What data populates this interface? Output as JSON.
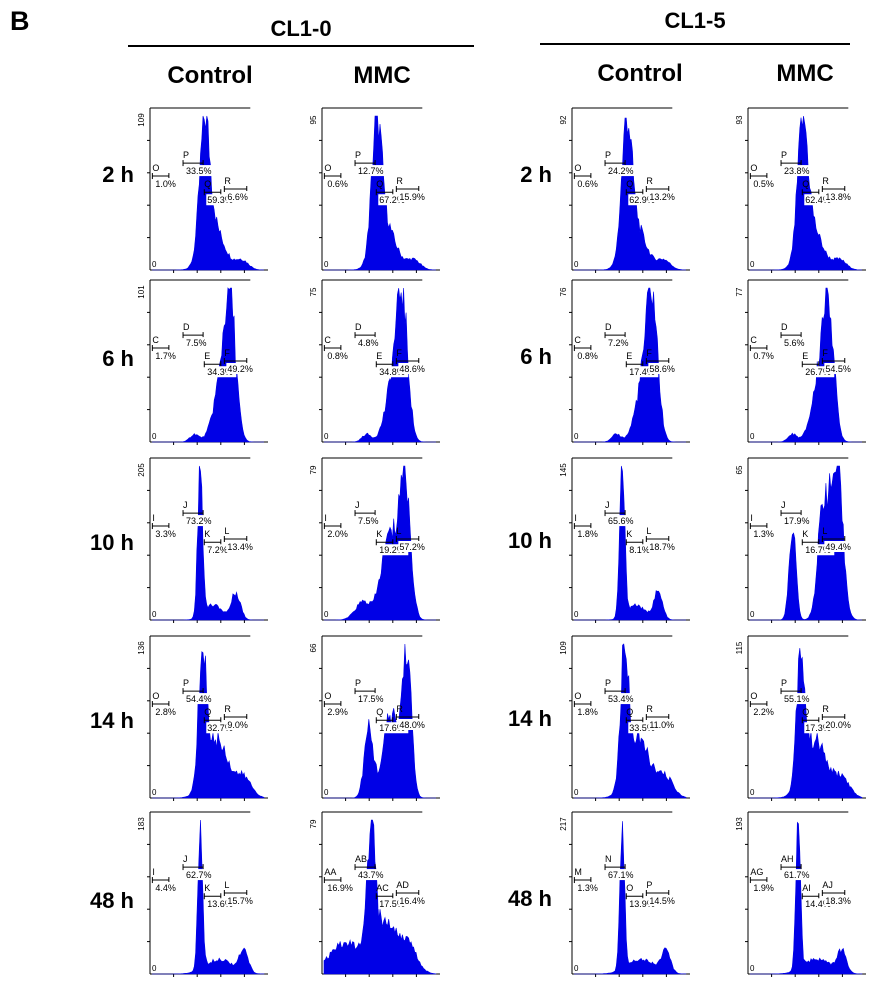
{
  "panel_letter": "B",
  "cell_lines": [
    "CL1-0",
    "CL1-5"
  ],
  "treatments": [
    "Control",
    "MMC"
  ],
  "time_labels": [
    "2 h",
    "6 h",
    "10 h",
    "14 h",
    "48 h"
  ],
  "colors": {
    "histogram": "#0000e6",
    "axis": "#000000",
    "text": "#000000"
  },
  "chart_data": [
    {
      "type": "area",
      "panel": "CL1-0 / Control / 2 h",
      "ymax_label": "109",
      "x0_label": "0",
      "profile": "g1",
      "x_range": [
        0,
        1
      ],
      "gates": [
        {
          "letter": "O",
          "pct": "1.0%"
        },
        {
          "letter": "P",
          "pct": "33.5%"
        },
        {
          "letter": "Q",
          "pct": "59.3%"
        },
        {
          "letter": "R",
          "pct": "6.6%"
        }
      ]
    },
    {
      "type": "area",
      "panel": "CL1-0 / MMC / 2 h",
      "ymax_label": "95",
      "x0_label": "0",
      "profile": "g1",
      "x_range": [
        0,
        1
      ],
      "gates": [
        {
          "letter": "O",
          "pct": "0.6%"
        },
        {
          "letter": "P",
          "pct": "12.7%"
        },
        {
          "letter": "Q",
          "pct": "67.2%"
        },
        {
          "letter": "R",
          "pct": "15.9%"
        }
      ]
    },
    {
      "type": "area",
      "panel": "CL1-5 / Control / 2 h",
      "ymax_label": "92",
      "x0_label": "0",
      "profile": "g1",
      "x_range": [
        0,
        1
      ],
      "gates": [
        {
          "letter": "O",
          "pct": "0.6%"
        },
        {
          "letter": "P",
          "pct": "24.2%"
        },
        {
          "letter": "Q",
          "pct": "62.9%"
        },
        {
          "letter": "R",
          "pct": "13.2%"
        }
      ]
    },
    {
      "type": "area",
      "panel": "CL1-5 / MMC / 2 h",
      "ymax_label": "93",
      "x0_label": "0",
      "profile": "g1",
      "x_range": [
        0,
        1
      ],
      "gates": [
        {
          "letter": "O",
          "pct": "0.5%"
        },
        {
          "letter": "P",
          "pct": "23.8%"
        },
        {
          "letter": "Q",
          "pct": "62.4%"
        },
        {
          "letter": "R",
          "pct": "13.8%"
        }
      ]
    },
    {
      "type": "area",
      "panel": "CL1-0 / Control / 6 h",
      "ymax_label": "101",
      "x0_label": "0",
      "profile": "late",
      "x_range": [
        0,
        1
      ],
      "gates": [
        {
          "letter": "C",
          "pct": "1.7%"
        },
        {
          "letter": "D",
          "pct": "7.5%"
        },
        {
          "letter": "E",
          "pct": "34.3%"
        },
        {
          "letter": "F",
          "pct": "49.2%"
        }
      ]
    },
    {
      "type": "area",
      "panel": "CL1-0 / MMC / 6 h",
      "ymax_label": "75",
      "x0_label": "0",
      "profile": "late",
      "x_range": [
        0,
        1
      ],
      "gates": [
        {
          "letter": "C",
          "pct": "0.8%"
        },
        {
          "letter": "D",
          "pct": "4.8%"
        },
        {
          "letter": "E",
          "pct": "34.8%"
        },
        {
          "letter": "F",
          "pct": "48.6%"
        }
      ]
    },
    {
      "type": "area",
      "panel": "CL1-5 / Control / 6 h",
      "ymax_label": "76",
      "x0_label": "0",
      "profile": "late",
      "x_range": [
        0,
        1
      ],
      "gates": [
        {
          "letter": "C",
          "pct": "0.8%"
        },
        {
          "letter": "D",
          "pct": "7.2%"
        },
        {
          "letter": "E",
          "pct": "17.4%"
        },
        {
          "letter": "F",
          "pct": "58.6%"
        }
      ]
    },
    {
      "type": "area",
      "panel": "CL1-5 / MMC / 6 h",
      "ymax_label": "77",
      "x0_label": "0",
      "profile": "late",
      "x_range": [
        0,
        1
      ],
      "gates": [
        {
          "letter": "C",
          "pct": "0.7%"
        },
        {
          "letter": "D",
          "pct": "5.6%"
        },
        {
          "letter": "E",
          "pct": "26.7%"
        },
        {
          "letter": "F",
          "pct": "54.5%"
        }
      ]
    },
    {
      "type": "area",
      "panel": "CL1-0 / Control / 10 h",
      "ymax_label": "205",
      "x0_label": "0",
      "profile": "sharp",
      "x_range": [
        0,
        1
      ],
      "gates": [
        {
          "letter": "I",
          "pct": "3.3%"
        },
        {
          "letter": "J",
          "pct": "73.2%"
        },
        {
          "letter": "K",
          "pct": "7.2%"
        },
        {
          "letter": "L",
          "pct": "13.4%"
        }
      ]
    },
    {
      "type": "area",
      "panel": "CL1-0 / MMC / 10 h",
      "ymax_label": "79",
      "x0_label": "0",
      "profile": "g2",
      "x_range": [
        0,
        1
      ],
      "gates": [
        {
          "letter": "I",
          "pct": "2.0%"
        },
        {
          "letter": "J",
          "pct": "7.5%"
        },
        {
          "letter": "K",
          "pct": "19.2%"
        },
        {
          "letter": "L",
          "pct": "57.2%"
        }
      ]
    },
    {
      "type": "area",
      "panel": "CL1-5 / Control / 10 h",
      "ymax_label": "145",
      "x0_label": "0",
      "profile": "sharp",
      "x_range": [
        0,
        1
      ],
      "gates": [
        {
          "letter": "I",
          "pct": "1.8%"
        },
        {
          "letter": "J",
          "pct": "65.6%"
        },
        {
          "letter": "K",
          "pct": "8.1%"
        },
        {
          "letter": "L",
          "pct": "18.7%"
        }
      ]
    },
    {
      "type": "area",
      "panel": "CL1-5 / MMC / 10 h",
      "ymax_label": "65",
      "x0_label": "0",
      "profile": "bimodal",
      "x_range": [
        0,
        1
      ],
      "gates": [
        {
          "letter": "I",
          "pct": "1.3%"
        },
        {
          "letter": "J",
          "pct": "17.9%"
        },
        {
          "letter": "K",
          "pct": "16.7%"
        },
        {
          "letter": "L",
          "pct": "49.4%"
        }
      ]
    },
    {
      "type": "area",
      "panel": "CL1-0 / Control / 14 h",
      "ymax_label": "136",
      "x0_label": "0",
      "profile": "g1tail",
      "x_range": [
        0,
        1
      ],
      "gates": [
        {
          "letter": "O",
          "pct": "2.8%"
        },
        {
          "letter": "P",
          "pct": "54.4%"
        },
        {
          "letter": "Q",
          "pct": "32.7%"
        },
        {
          "letter": "R",
          "pct": "9.0%"
        }
      ]
    },
    {
      "type": "area",
      "panel": "CL1-0 / MMC / 14 h",
      "ymax_label": "66",
      "x0_label": "0",
      "profile": "bimodal2",
      "x_range": [
        0,
        1
      ],
      "gates": [
        {
          "letter": "O",
          "pct": "2.9%"
        },
        {
          "letter": "P",
          "pct": "17.5%"
        },
        {
          "letter": "Q",
          "pct": "17.6%"
        },
        {
          "letter": "R",
          "pct": "48.0%"
        }
      ]
    },
    {
      "type": "area",
      "panel": "CL1-5 / Control / 14 h",
      "ymax_label": "109",
      "x0_label": "0",
      "profile": "g1tail",
      "x_range": [
        0,
        1
      ],
      "gates": [
        {
          "letter": "O",
          "pct": "1.8%"
        },
        {
          "letter": "P",
          "pct": "53.4%"
        },
        {
          "letter": "Q",
          "pct": "33.5%"
        },
        {
          "letter": "R",
          "pct": "11.0%"
        }
      ]
    },
    {
      "type": "area",
      "panel": "CL1-5 / MMC / 14 h",
      "ymax_label": "115",
      "x0_label": "0",
      "profile": "g1tail",
      "x_range": [
        0,
        1
      ],
      "gates": [
        {
          "letter": "O",
          "pct": "2.2%"
        },
        {
          "letter": "P",
          "pct": "55.1%"
        },
        {
          "letter": "Q",
          "pct": "17.3%"
        },
        {
          "letter": "R",
          "pct": "20.0%"
        }
      ]
    },
    {
      "type": "area",
      "panel": "CL1-0 / Control / 48 h",
      "ymax_label": "183",
      "x0_label": "0",
      "profile": "sharp48",
      "x_range": [
        0,
        1
      ],
      "gates": [
        {
          "letter": "I",
          "pct": "4.4%"
        },
        {
          "letter": "J",
          "pct": "62.7%"
        },
        {
          "letter": "K",
          "pct": "13.6%"
        },
        {
          "letter": "L",
          "pct": "15.7%"
        }
      ]
    },
    {
      "type": "area",
      "panel": "CL1-0 / MMC / 48 h",
      "ymax_label": "79",
      "x0_label": "0",
      "profile": "broad48",
      "x_range": [
        0,
        1
      ],
      "gates": [
        {
          "letter": "AA",
          "pct": "16.9%"
        },
        {
          "letter": "AB",
          "pct": "43.7%"
        },
        {
          "letter": "AC",
          "pct": "17.5%"
        },
        {
          "letter": "AD",
          "pct": "16.4%"
        }
      ]
    },
    {
      "type": "area",
      "panel": "CL1-5 / Control / 48 h",
      "ymax_label": "217",
      "x0_label": "0",
      "profile": "sharp48",
      "x_range": [
        0,
        1
      ],
      "gates": [
        {
          "letter": "M",
          "pct": "1.3%"
        },
        {
          "letter": "N",
          "pct": "67.1%"
        },
        {
          "letter": "O",
          "pct": "13.9%"
        },
        {
          "letter": "P",
          "pct": "14.5%"
        }
      ]
    },
    {
      "type": "area",
      "panel": "CL1-5 / MMC / 48 h",
      "ymax_label": "193",
      "x0_label": "0",
      "profile": "sharp48",
      "x_range": [
        0,
        1
      ],
      "gates": [
        {
          "letter": "AG",
          "pct": "1.9%"
        },
        {
          "letter": "AH",
          "pct": "61.7%"
        },
        {
          "letter": "AI",
          "pct": "14.4%"
        },
        {
          "letter": "AJ",
          "pct": "18.3%"
        }
      ]
    }
  ]
}
